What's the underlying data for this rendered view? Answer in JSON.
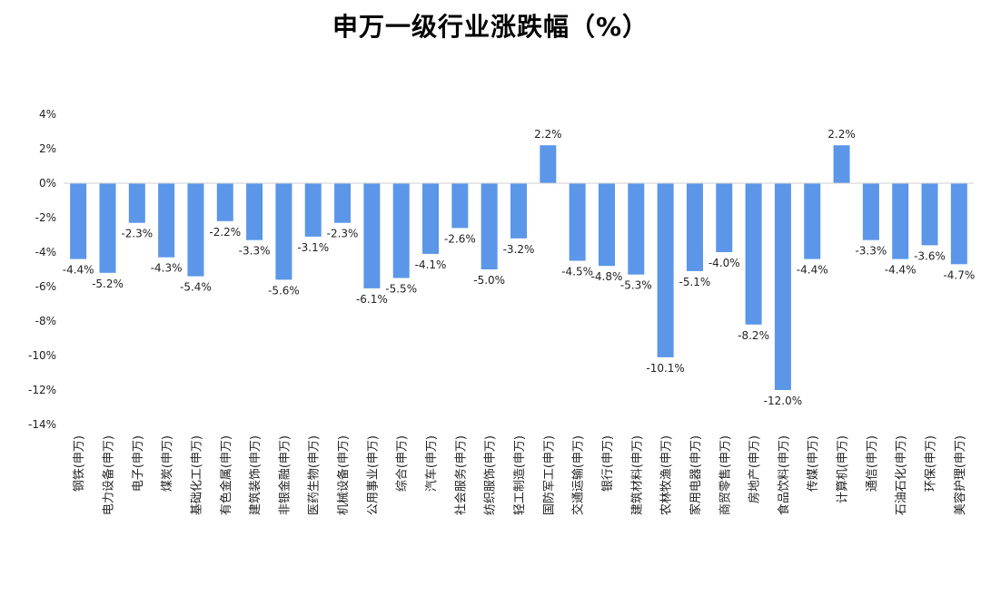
{
  "chart_data": {
    "type": "bar",
    "title": "申万一级行业涨跌幅（%）",
    "xlabel": "",
    "ylabel": "",
    "ylim": [
      -14,
      4
    ],
    "yticks": [
      4,
      2,
      0,
      -2,
      -4,
      -6,
      -8,
      -10,
      -12,
      -14
    ],
    "ytick_labels": [
      "4%",
      "2%",
      "0%",
      "-2%",
      "-4%",
      "-6%",
      "-8%",
      "-10%",
      "-12%",
      "-14%"
    ],
    "bar_color": "#5b96e8",
    "categories": [
      "钢铁(申万)",
      "电力设备(申万)",
      "电子(申万)",
      "煤炭(申万)",
      "基础化工(申万)",
      "有色金属(申万)",
      "建筑装饰(申万)",
      "非银金融(申万)",
      "医药生物(申万)",
      "机械设备(申万)",
      "公用事业(申万)",
      "综合(申万)",
      "汽车(申万)",
      "社会服务(申万)",
      "纺织服饰(申万)",
      "轻工制造(申万)",
      "国防军工(申万)",
      "交通运输(申万)",
      "银行(申万)",
      "建筑材料(申万)",
      "农林牧渔(申万)",
      "家用电器(申万)",
      "商贸零售(申万)",
      "房地产(申万)",
      "食品饮料(申万)",
      "传媒(申万)",
      "计算机(申万)",
      "通信(申万)",
      "石油石化(申万)",
      "环保(申万)",
      "美容护理(申万)"
    ],
    "values": [
      -4.4,
      -5.2,
      -2.3,
      -4.3,
      -5.4,
      -2.2,
      -3.3,
      -5.6,
      -3.1,
      -2.3,
      -6.1,
      -5.5,
      -4.1,
      -2.6,
      -5.0,
      -3.2,
      2.2,
      -4.5,
      -4.8,
      -5.3,
      -10.1,
      -5.1,
      -4.0,
      -8.2,
      -12.0,
      -4.4,
      2.2,
      -3.3,
      -4.4,
      -3.6,
      -4.7
    ],
    "data_labels": [
      "-4.4%",
      "-5.2%",
      "-2.3%",
      "-4.3%",
      "-5.4%",
      "-2.2%",
      "-3.3%",
      "-5.6%",
      "-3.1%",
      "-2.3%",
      "-6.1%",
      "-5.5%",
      "-4.1%",
      "-2.6%",
      "-5.0%",
      "-3.2%",
      "2.2%",
      "-4.5%",
      "-4.8%",
      "-5.3%",
      "-10.1%",
      "-5.1%",
      "-4.0%",
      "-8.2%",
      "-12.0%",
      "-4.4%",
      "2.2%",
      "-3.3%",
      "-4.4%",
      "-3.6%",
      "-4.7%"
    ]
  }
}
